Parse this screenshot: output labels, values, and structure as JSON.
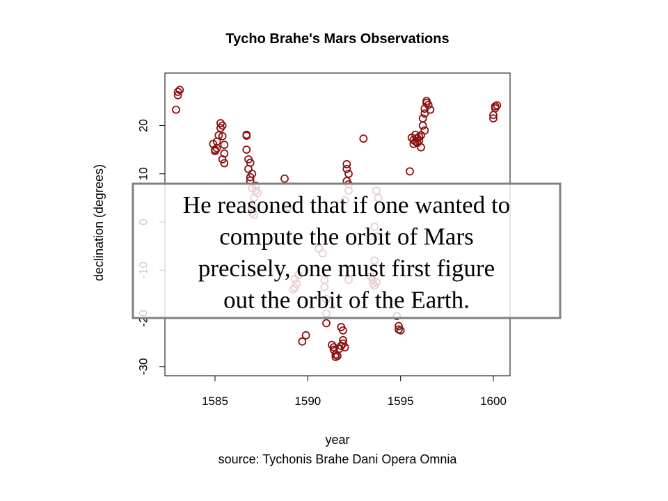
{
  "chart_data": {
    "type": "scatter",
    "title": "Tycho Brahe's Mars Observations",
    "x_label": "year",
    "y_label": "declination (degrees)",
    "caption": "source: Tychonis Brahe Dani Opera Omnia",
    "color": "#8b1010",
    "xlim": [
      1582.3,
      1600.9
    ],
    "ylim": [
      -31.9,
      30.9
    ],
    "xticks": [
      1585,
      1590,
      1595,
      1600
    ],
    "yticks": [
      -30,
      -20,
      -10,
      0,
      10,
      20
    ],
    "x": [
      1582.9,
      1583.0,
      1583.0,
      1583.1,
      1584.9,
      1585.0,
      1585.1,
      1585.2,
      1585.3,
      1585.3,
      1585.4,
      1585.4,
      1585.5,
      1585.5,
      1585.4,
      1585.5,
      1585.0,
      1585.1,
      1586.7,
      1586.7,
      1586.7,
      1586.8,
      1586.9,
      1586.8,
      1586.9,
      1587.0,
      1586.9,
      1587.0,
      1587.2,
      1587.2,
      1587.3,
      1587.1,
      1587.0,
      1587.0,
      1587.1,
      1588.75,
      1588.9,
      1589.3,
      1589.4,
      1589.3,
      1589.5,
      1589.2,
      1589.7,
      1589.9,
      1590.6,
      1590.8,
      1590.9,
      1590.9,
      1591.0,
      1591.0,
      1591.0,
      1591.3,
      1591.4,
      1591.5,
      1591.5,
      1591.6,
      1591.4,
      1591.7,
      1591.8,
      1591.9,
      1591.9,
      1591.9,
      1591.8,
      1592.0,
      1592.1,
      1592.1,
      1592.2,
      1592.1,
      1592.2,
      1592.2,
      1592.0,
      1592.2,
      1593.0,
      1593.7,
      1593.8,
      1593.6,
      1593.7,
      1593.5,
      1593.5,
      1593.6,
      1593.7,
      1593.4,
      1593.6,
      1594.8,
      1594.9,
      1594.9,
      1595.0,
      1595.5,
      1595.6,
      1595.7,
      1595.8,
      1595.9,
      1595.8,
      1595.9,
      1596.0,
      1596.0,
      1595.7,
      1596.1,
      1596.1,
      1596.2,
      1596.2,
      1596.3,
      1596.3,
      1596.4,
      1596.4,
      1596.5,
      1596.6,
      1596.3,
      1600.0,
      1600.0,
      1600.1,
      1600.2,
      1600.1
    ],
    "values": [
      23.3,
      27.0,
      26.3,
      27.4,
      16.2,
      14.7,
      15.3,
      18.0,
      19.5,
      20.5,
      20.0,
      17.8,
      16.0,
      14.2,
      13.0,
      12.2,
      15.0,
      16.7,
      18.1,
      17.9,
      15.0,
      13.0,
      12.3,
      11.0,
      9.3,
      10.0,
      8.6,
      7.0,
      7.5,
      6.5,
      6.0,
      5.0,
      3.0,
      1.9,
      1.5,
      9.0,
      3.0,
      -11.8,
      -12.8,
      -13.6,
      -11.0,
      -14.0,
      -24.8,
      -23.5,
      -5.5,
      -6.5,
      -12.0,
      -13.5,
      -16.0,
      -19.0,
      -21.0,
      -25.5,
      -26.5,
      -27.5,
      -28.0,
      -27.8,
      -26.0,
      -26.3,
      -25.7,
      -25.2,
      -24.5,
      -22.5,
      -21.8,
      -26.0,
      12.0,
      11.0,
      10.0,
      8.5,
      7.8,
      6.5,
      4.5,
      -12.0,
      17.3,
      6.5,
      5.0,
      -1.0,
      -3.0,
      -12.0,
      -12.8,
      -13.2,
      -12.5,
      -11.3,
      -8.0,
      -19.5,
      -21.6,
      -22.3,
      -22.5,
      10.5,
      17.5,
      17.0,
      16.7,
      17.4,
      18.1,
      16.4,
      16.9,
      17.7,
      16.2,
      15.5,
      18.0,
      20.0,
      21.5,
      22.5,
      23.5,
      24.7,
      25.1,
      24.3,
      23.3,
      19.0,
      21.5,
      22.2,
      23.6,
      24.2,
      24.0
    ]
  },
  "text_box": {
    "lines": [
      "He reasoned that if one wanted to",
      "compute the orbit of Mars",
      "precisely, one must first figure",
      "out the orbit of the Earth."
    ]
  }
}
